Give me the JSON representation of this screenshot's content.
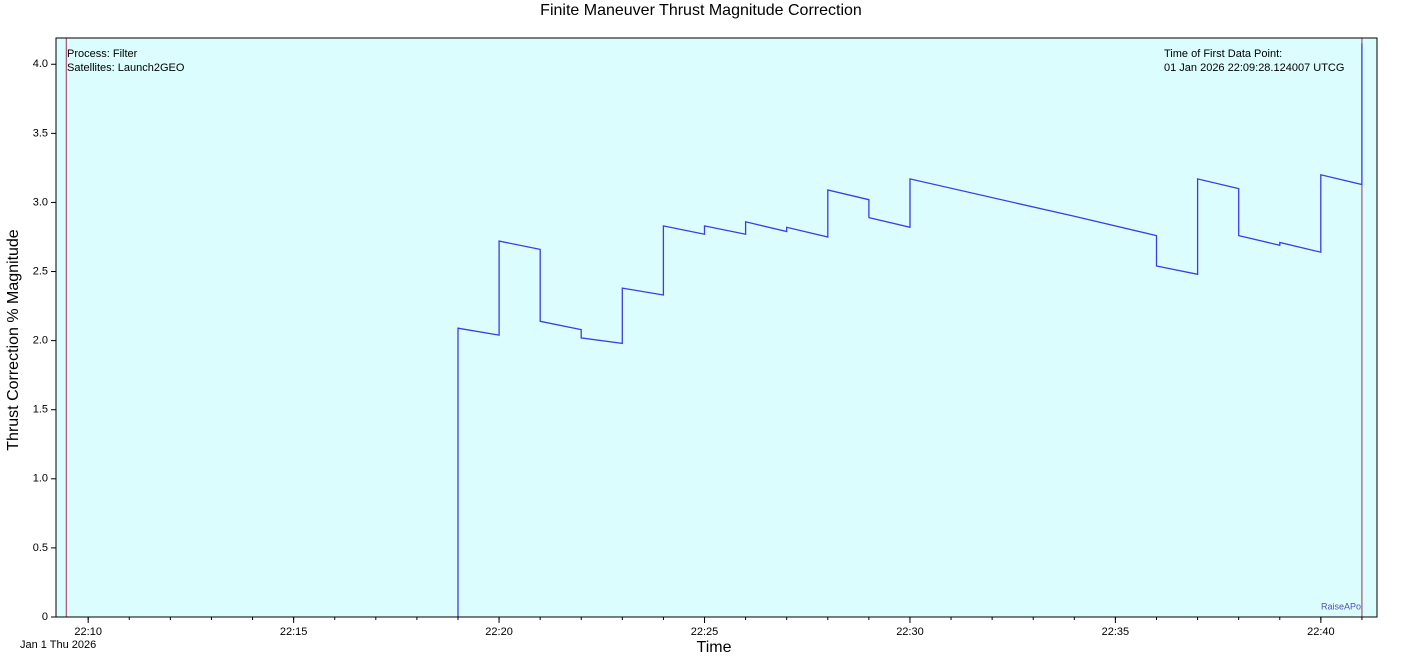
{
  "chart_data": {
    "type": "line",
    "title": "Finite Maneuver Thrust Magnitude Correction",
    "x_label": "Time",
    "y_label": "Thrust Correction % Magnitude",
    "date_label": "Jan 1 Thu 2026",
    "annotations_left": [
      "Process: Filter",
      "Satellites: Launch2GEO"
    ],
    "annotations_right": [
      "Time of First Data Point:",
      "01 Jan 2026 22:09:28.124007 UTCG"
    ],
    "series_label": "RaiseAPo",
    "background": "#dcfdfd",
    "event_line_color": "#a0305a",
    "event_lines": [
      "22:09:28",
      "22:41:00"
    ],
    "series": [
      {
        "name": "RaiseAPo",
        "color": "#3c3ce6",
        "x": [
          "22:19:00",
          "22:19:00",
          "22:20:00",
          "22:20:00",
          "22:21:00",
          "22:21:00",
          "22:22:00",
          "22:22:00",
          "22:23:00",
          "22:23:00",
          "22:24:00",
          "22:24:00",
          "22:25:00",
          "22:25:00",
          "22:26:00",
          "22:26:00",
          "22:27:00",
          "22:27:00",
          "22:28:00",
          "22:28:00",
          "22:29:00",
          "22:29:00",
          "22:30:00",
          "22:30:00",
          "22:34:00",
          "22:36:00",
          "22:36:00",
          "22:37:00",
          "22:37:00",
          "22:38:00",
          "22:38:00",
          "22:39:00",
          "22:39:00",
          "22:40:00",
          "22:40:00",
          "22:41:00",
          "22:41:00"
        ],
        "values": [
          0,
          2.09,
          2.04,
          2.72,
          2.66,
          2.14,
          2.08,
          2.02,
          1.98,
          2.38,
          2.33,
          2.83,
          2.77,
          2.83,
          2.77,
          2.86,
          2.79,
          2.82,
          2.75,
          3.09,
          3.02,
          2.89,
          2.82,
          3.17,
          2.9,
          2.76,
          2.54,
          2.48,
          3.17,
          3.1,
          2.76,
          2.69,
          2.71,
          2.64,
          3.2,
          3.13,
          4.15
        ]
      }
    ],
    "xlim": [
      "22:09:13",
      "22:41:22"
    ],
    "xticks": [
      "22:10",
      "22:15",
      "22:20",
      "22:25",
      "22:30",
      "22:35",
      "22:40"
    ],
    "ylim": [
      0,
      4.19
    ],
    "yticks": [
      {
        "value": 0,
        "label": "0"
      },
      {
        "value": 0.5,
        "label": "0.5"
      },
      {
        "value": 1,
        "label": "1.0"
      },
      {
        "value": 1.5,
        "label": "1.5"
      },
      {
        "value": 2,
        "label": "2.0"
      },
      {
        "value": 2.5,
        "label": "2.5"
      },
      {
        "value": 3,
        "label": "3.0"
      },
      {
        "value": 3.5,
        "label": "3.5"
      },
      {
        "value": 4,
        "label": "4.0"
      }
    ]
  }
}
